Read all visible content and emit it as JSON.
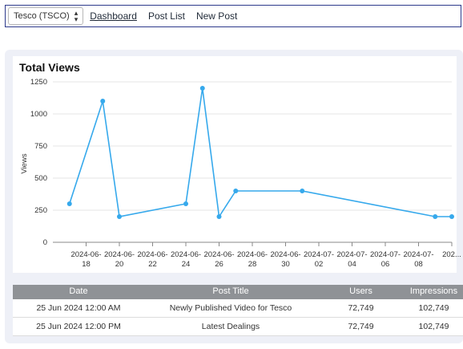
{
  "topbar": {
    "company_select": "Tesco (TSCO)",
    "nav": [
      "Dashboard",
      "Post List",
      "New Post"
    ]
  },
  "chart_title": "Total Views",
  "chart_data": {
    "type": "line",
    "title": "Total Views",
    "xlabel": "",
    "ylabel": "Views",
    "ylim": [
      0,
      1250
    ],
    "yticks": [
      0,
      250,
      500,
      750,
      1000,
      1250
    ],
    "x_ticks": [
      [
        "2024-06-",
        "18"
      ],
      [
        "2024-06-",
        "20"
      ],
      [
        "2024-06-",
        "22"
      ],
      [
        "2024-06-",
        "24"
      ],
      [
        "2024-06-",
        "26"
      ],
      [
        "2024-06-",
        "28"
      ],
      [
        "2024-06-",
        "30"
      ],
      [
        "2024-07-",
        "02"
      ],
      [
        "2024-07-",
        "04"
      ],
      [
        "2024-07-",
        "06"
      ],
      [
        "2024-07-",
        "08"
      ],
      [
        "202...",
        ""
      ]
    ],
    "xlim": [
      "2024-06-16",
      "2024-07-10"
    ],
    "x": [
      "2024-06-17",
      "2024-06-19",
      "2024-06-20",
      "2024-06-24",
      "2024-06-25",
      "2024-06-26",
      "2024-06-27",
      "2024-07-01",
      "2024-07-09",
      "2024-07-10"
    ],
    "values": [
      300,
      1100,
      200,
      300,
      1200,
      200,
      400,
      400,
      200,
      200
    ],
    "color": "#36a9ec",
    "grid": true
  },
  "table": {
    "columns": [
      "Date",
      "Post Title",
      "Users",
      "Impressions"
    ],
    "rows": [
      [
        "25 Jun 2024 12:00 AM",
        "Newly Published Video for Tesco",
        "72,749",
        "102,749"
      ],
      [
        "25 Jun 2024 12:00 PM",
        "Latest Dealings",
        "72,749",
        "102,749"
      ]
    ]
  }
}
